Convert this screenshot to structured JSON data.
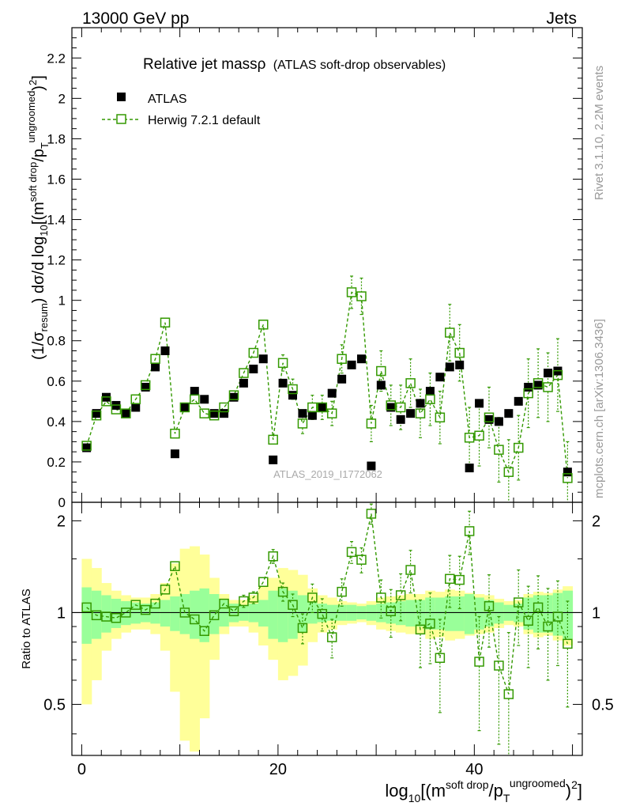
{
  "header": {
    "left": "13000 GeV pp",
    "right": "Jets"
  },
  "side_labels": {
    "top": "Rivet 3.1.10,  2.2M events",
    "bottom": "mcplots.cern.ch [arXiv:1306.3436]"
  },
  "watermark": "ATLAS_2019_I1772062",
  "colors": {
    "data": "#000000",
    "mc": "#339900",
    "band_inner": "#99ff99",
    "band_outer": "#ffff99"
  },
  "chart_data": [
    {
      "type": "scatter",
      "panel": "main",
      "title": "Relative jet massρ",
      "subtitle": "(ATLAS soft-drop observables)",
      "ylabel": "(1/σ_resum) dσ/d log10[(m^soft drop/pT^ungroomed)^2]",
      "ylabel_parts": [
        "(1/σ",
        "resum",
        ") dσ/d log",
        "10",
        "[(m",
        "soft drop",
        "/p",
        "T",
        "ungroomed",
        ")",
        "2",
        "]"
      ],
      "xlim": [
        -1,
        51
      ],
      "ylim": [
        0,
        2.35
      ],
      "yticks": [
        0,
        0.2,
        0.4,
        0.6,
        0.8,
        1,
        1.2,
        1.4,
        1.6,
        1.8,
        2,
        2.2
      ],
      "ytick_labels": [
        "0",
        "0.2",
        "0.4",
        "0.6",
        "0.8",
        "1",
        "1.2",
        "1.4",
        "1.6",
        "1.8",
        "2",
        "2.2"
      ],
      "legend": [
        "ATLAS",
        "Herwig 7.2.1 default"
      ],
      "legend_loc": "top-left",
      "x": [
        0.5,
        1.5,
        2.5,
        3.5,
        4.5,
        5.5,
        6.5,
        7.5,
        8.5,
        9.5,
        10.5,
        11.5,
        12.5,
        13.5,
        14.5,
        15.5,
        16.5,
        17.5,
        18.5,
        19.5,
        20.5,
        21.5,
        22.5,
        23.5,
        24.5,
        25.5,
        26.5,
        27.5,
        28.5,
        29.5,
        30.5,
        31.5,
        32.5,
        33.5,
        34.5,
        35.5,
        36.5,
        37.5,
        38.5,
        39.5,
        40.5,
        41.5,
        42.5,
        43.5,
        44.5,
        45.5,
        46.5,
        47.5,
        48.5,
        49.5
      ],
      "series": [
        {
          "name": "ATLAS",
          "values": [
            0.27,
            0.44,
            0.52,
            0.48,
            0.44,
            0.47,
            0.57,
            0.67,
            0.75,
            0.24,
            0.47,
            0.55,
            0.51,
            0.44,
            0.44,
            0.52,
            0.59,
            0.66,
            0.71,
            0.21,
            0.59,
            0.53,
            0.44,
            0.43,
            0.47,
            0.54,
            0.61,
            0.68,
            0.71,
            0.18,
            0.58,
            0.47,
            0.41,
            0.44,
            0.49,
            0.55,
            0.62,
            0.67,
            0.68,
            0.17,
            0.49,
            0.41,
            0.4,
            0.44,
            0.5,
            0.57,
            0.58,
            0.64,
            0.65,
            0.15
          ]
        },
        {
          "name": "Herwig 7.2.1 default",
          "values": [
            0.28,
            0.43,
            0.5,
            0.46,
            0.44,
            0.51,
            0.58,
            0.71,
            0.89,
            0.34,
            0.47,
            0.51,
            0.44,
            0.43,
            0.47,
            0.53,
            0.64,
            0.74,
            0.88,
            0.31,
            0.69,
            0.56,
            0.39,
            0.47,
            0.47,
            0.44,
            0.71,
            1.04,
            1.02,
            0.39,
            0.65,
            0.48,
            0.47,
            0.59,
            0.44,
            0.51,
            0.42,
            0.84,
            0.74,
            0.32,
            0.33,
            0.42,
            0.26,
            0.15,
            0.27,
            0.54,
            0.59,
            0.57,
            0.63,
            0.12
          ],
          "errors": [
            0.01,
            0.01,
            0.01,
            0.01,
            0.01,
            0.01,
            0.01,
            0.02,
            0.02,
            0.02,
            0.01,
            0.01,
            0.01,
            0.01,
            0.01,
            0.02,
            0.02,
            0.03,
            0.03,
            0.03,
            0.04,
            0.05,
            0.05,
            0.06,
            0.06,
            0.06,
            0.07,
            0.08,
            0.09,
            0.09,
            0.1,
            0.1,
            0.11,
            0.12,
            0.12,
            0.13,
            0.13,
            0.14,
            0.14,
            0.15,
            0.15,
            0.15,
            0.16,
            0.16,
            0.16,
            0.17,
            0.17,
            0.17,
            0.18,
            0.18
          ]
        }
      ]
    },
    {
      "type": "scatter",
      "panel": "ratio",
      "ylabel": "Ratio to ATLAS",
      "xlabel": "log10[(m^soft drop/pT^ungroomed)^2]",
      "xlabel_parts": [
        "log",
        "10",
        "[(m",
        "soft drop",
        "/p",
        "T",
        "ungroomed",
        ")",
        "2",
        "]"
      ],
      "xlim": [
        -1,
        51
      ],
      "ylim": [
        0.34,
        2.3
      ],
      "xticks": [
        0,
        20,
        40
      ],
      "xtick_labels": [
        "0",
        "20",
        "40"
      ],
      "yticks": [
        0.5,
        1,
        2
      ],
      "ytick_labels": [
        "0.5",
        "1",
        "2"
      ],
      "x": [
        0.5,
        1.5,
        2.5,
        3.5,
        4.5,
        5.5,
        6.5,
        7.5,
        8.5,
        9.5,
        10.5,
        11.5,
        12.5,
        13.5,
        14.5,
        15.5,
        16.5,
        17.5,
        18.5,
        19.5,
        20.5,
        21.5,
        22.5,
        23.5,
        24.5,
        25.5,
        26.5,
        27.5,
        28.5,
        29.5,
        30.5,
        31.5,
        32.5,
        33.5,
        34.5,
        35.5,
        36.5,
        37.5,
        38.5,
        39.5,
        40.5,
        41.5,
        42.5,
        43.5,
        44.5,
        45.5,
        46.5,
        47.5,
        48.5,
        49.5
      ],
      "values": [
        1.04,
        0.98,
        0.97,
        0.96,
        1.0,
        1.06,
        1.02,
        1.07,
        1.19,
        1.42,
        1.0,
        0.95,
        0.87,
        0.98,
        1.07,
        1.01,
        1.09,
        1.12,
        1.26,
        1.53,
        1.17,
        1.06,
        0.89,
        1.12,
        0.99,
        0.83,
        1.17,
        1.58,
        1.49,
        2.11,
        1.12,
        1.01,
        1.14,
        1.38,
        0.88,
        0.92,
        0.71,
        1.29,
        1.28,
        1.85,
        0.69,
        1.05,
        0.67,
        0.54,
        1.08,
        0.94,
        1.04,
        0.9,
        0.97,
        0.79
      ],
      "errors": [
        0.02,
        0.02,
        0.02,
        0.02,
        0.02,
        0.02,
        0.02,
        0.02,
        0.03,
        0.05,
        0.03,
        0.03,
        0.03,
        0.03,
        0.03,
        0.04,
        0.05,
        0.05,
        0.05,
        0.08,
        0.08,
        0.09,
        0.1,
        0.12,
        0.12,
        0.12,
        0.12,
        0.13,
        0.14,
        0.16,
        0.16,
        0.18,
        0.2,
        0.22,
        0.22,
        0.24,
        0.24,
        0.25,
        0.25,
        0.3,
        0.28,
        0.28,
        0.3,
        0.32,
        0.3,
        0.28,
        0.28,
        0.3,
        0.3,
        0.3
      ],
      "band_inner": [
        0.21,
        0.18,
        0.14,
        0.11,
        0.09,
        0.08,
        0.07,
        0.08,
        0.1,
        0.13,
        0.15,
        0.18,
        0.2,
        0.15,
        0.1,
        0.07,
        0.06,
        0.07,
        0.1,
        0.18,
        0.2,
        0.18,
        0.14,
        0.08,
        0.07,
        0.06,
        0.06,
        0.06,
        0.05,
        0.06,
        0.07,
        0.08,
        0.09,
        0.1,
        0.1,
        0.12,
        0.12,
        0.13,
        0.13,
        0.15,
        0.12,
        0.1,
        0.08,
        0.06,
        0.07,
        0.12,
        0.14,
        0.14,
        0.16,
        0.18
      ],
      "band_outer": [
        0.5,
        0.4,
        0.25,
        0.18,
        0.14,
        0.12,
        0.12,
        0.15,
        0.25,
        0.45,
        0.62,
        0.65,
        0.55,
        0.3,
        0.15,
        0.1,
        0.1,
        0.14,
        0.22,
        0.3,
        0.4,
        0.38,
        0.33,
        0.2,
        0.14,
        0.12,
        0.09,
        0.08,
        0.07,
        0.09,
        0.12,
        0.13,
        0.14,
        0.15,
        0.15,
        0.18,
        0.17,
        0.19,
        0.18,
        0.16,
        0.15,
        0.14,
        0.11,
        0.09,
        0.1,
        0.15,
        0.17,
        0.16,
        0.19,
        0.22
      ]
    }
  ]
}
